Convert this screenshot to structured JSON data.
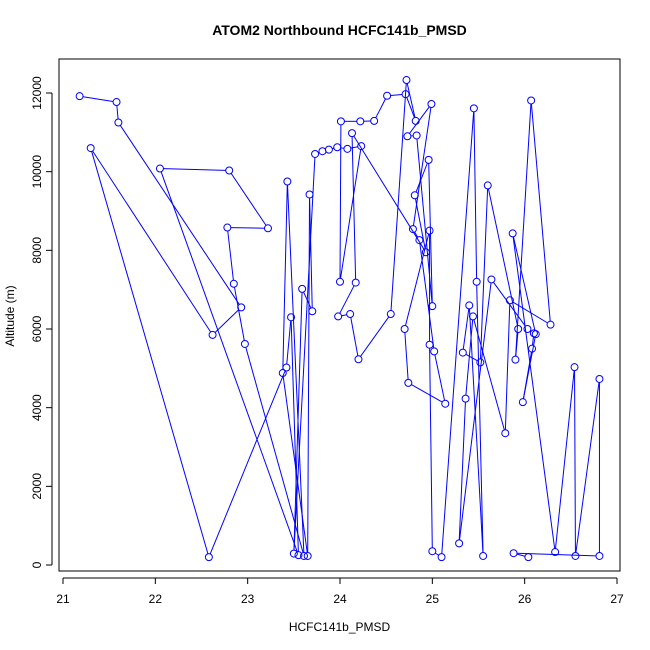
{
  "chart_data": {
    "type": "line",
    "title": "ATOM2 Northbound HCFC141b_PMSD",
    "xlabel": "HCFC141b_PMSD",
    "ylabel": "Altitude (m)",
    "xlim": [
      21,
      27
    ],
    "ylim": [
      0,
      12000
    ],
    "x_ticks": [
      21,
      22,
      23,
      24,
      25,
      26,
      27
    ],
    "y_ticks": [
      0,
      2000,
      4000,
      6000,
      8000,
      10000,
      12000
    ],
    "grid": false,
    "series_color": "#0000ff",
    "points": [
      [
        21.18,
        11920
      ],
      [
        21.58,
        11770
      ],
      [
        21.6,
        11250
      ],
      [
        22.93,
        6550
      ],
      [
        22.62,
        5850
      ],
      [
        21.3,
        10600
      ],
      [
        22.58,
        200
      ],
      [
        23.42,
        5020
      ],
      [
        23.47,
        6300
      ],
      [
        23.55,
        250
      ],
      [
        22.05,
        10080
      ],
      [
        22.8,
        10030
      ],
      [
        23.22,
        8560
      ],
      [
        22.78,
        8580
      ],
      [
        22.85,
        7150
      ],
      [
        22.97,
        5620
      ],
      [
        23.61,
        230
      ],
      [
        23.43,
        9750
      ],
      [
        23.38,
        4880
      ],
      [
        23.65,
        230
      ],
      [
        23.67,
        9420
      ],
      [
        23.7,
        6450
      ],
      [
        23.59,
        7020
      ],
      [
        23.5,
        290
      ],
      [
        23.73,
        10450
      ],
      [
        23.81,
        10520
      ],
      [
        23.88,
        10560
      ],
      [
        23.97,
        10620
      ],
      [
        24.08,
        10580
      ],
      [
        24.23,
        10650
      ],
      [
        24.0,
        7200
      ],
      [
        24.01,
        11280
      ],
      [
        24.22,
        11280
      ],
      [
        24.37,
        11290
      ],
      [
        24.51,
        11930
      ],
      [
        24.71,
        11970
      ],
      [
        24.82,
        11290
      ],
      [
        24.72,
        12330
      ],
      [
        24.55,
        6380
      ],
      [
        24.2,
        5230
      ],
      [
        24.11,
        6380
      ],
      [
        23.98,
        6320
      ],
      [
        24.17,
        7180
      ],
      [
        24.13,
        10980
      ],
      [
        24.93,
        7950
      ],
      [
        24.81,
        9400
      ],
      [
        24.96,
        10300
      ],
      [
        25.0,
        6580
      ],
      [
        24.83,
        10920
      ],
      [
        24.73,
        10900
      ],
      [
        24.99,
        11720
      ],
      [
        24.79,
        8540
      ],
      [
        24.86,
        8260
      ],
      [
        25.02,
        5430
      ],
      [
        25.14,
        4100
      ],
      [
        24.74,
        4630
      ],
      [
        24.7,
        6000
      ],
      [
        24.97,
        8500
      ],
      [
        24.97,
        5600
      ],
      [
        25.0,
        350
      ],
      [
        25.1,
        200
      ],
      [
        25.45,
        11610
      ],
      [
        25.48,
        7200
      ],
      [
        25.55,
        230
      ],
      [
        25.4,
        6600
      ],
      [
        25.33,
        5400
      ],
      [
        25.52,
        5150
      ],
      [
        25.6,
        9650
      ],
      [
        25.93,
        6000
      ],
      [
        25.9,
        5220
      ],
      [
        26.07,
        11810
      ],
      [
        26.28,
        6110
      ],
      [
        25.84,
        6730
      ],
      [
        25.79,
        3350
      ],
      [
        25.44,
        6320
      ],
      [
        25.36,
        4230
      ],
      [
        25.29,
        550
      ],
      [
        25.64,
        7260
      ],
      [
        26.03,
        6000
      ],
      [
        26.1,
        5890
      ],
      [
        26.08,
        5500
      ],
      [
        25.98,
        4140
      ],
      [
        26.12,
        5870
      ],
      [
        25.87,
        8430
      ],
      [
        26.33,
        330
      ],
      [
        26.54,
        5030
      ],
      [
        26.55,
        230
      ],
      [
        26.81,
        4730
      ],
      [
        26.81,
        230
      ],
      [
        25.88,
        300
      ],
      [
        26.04,
        200
      ]
    ]
  }
}
